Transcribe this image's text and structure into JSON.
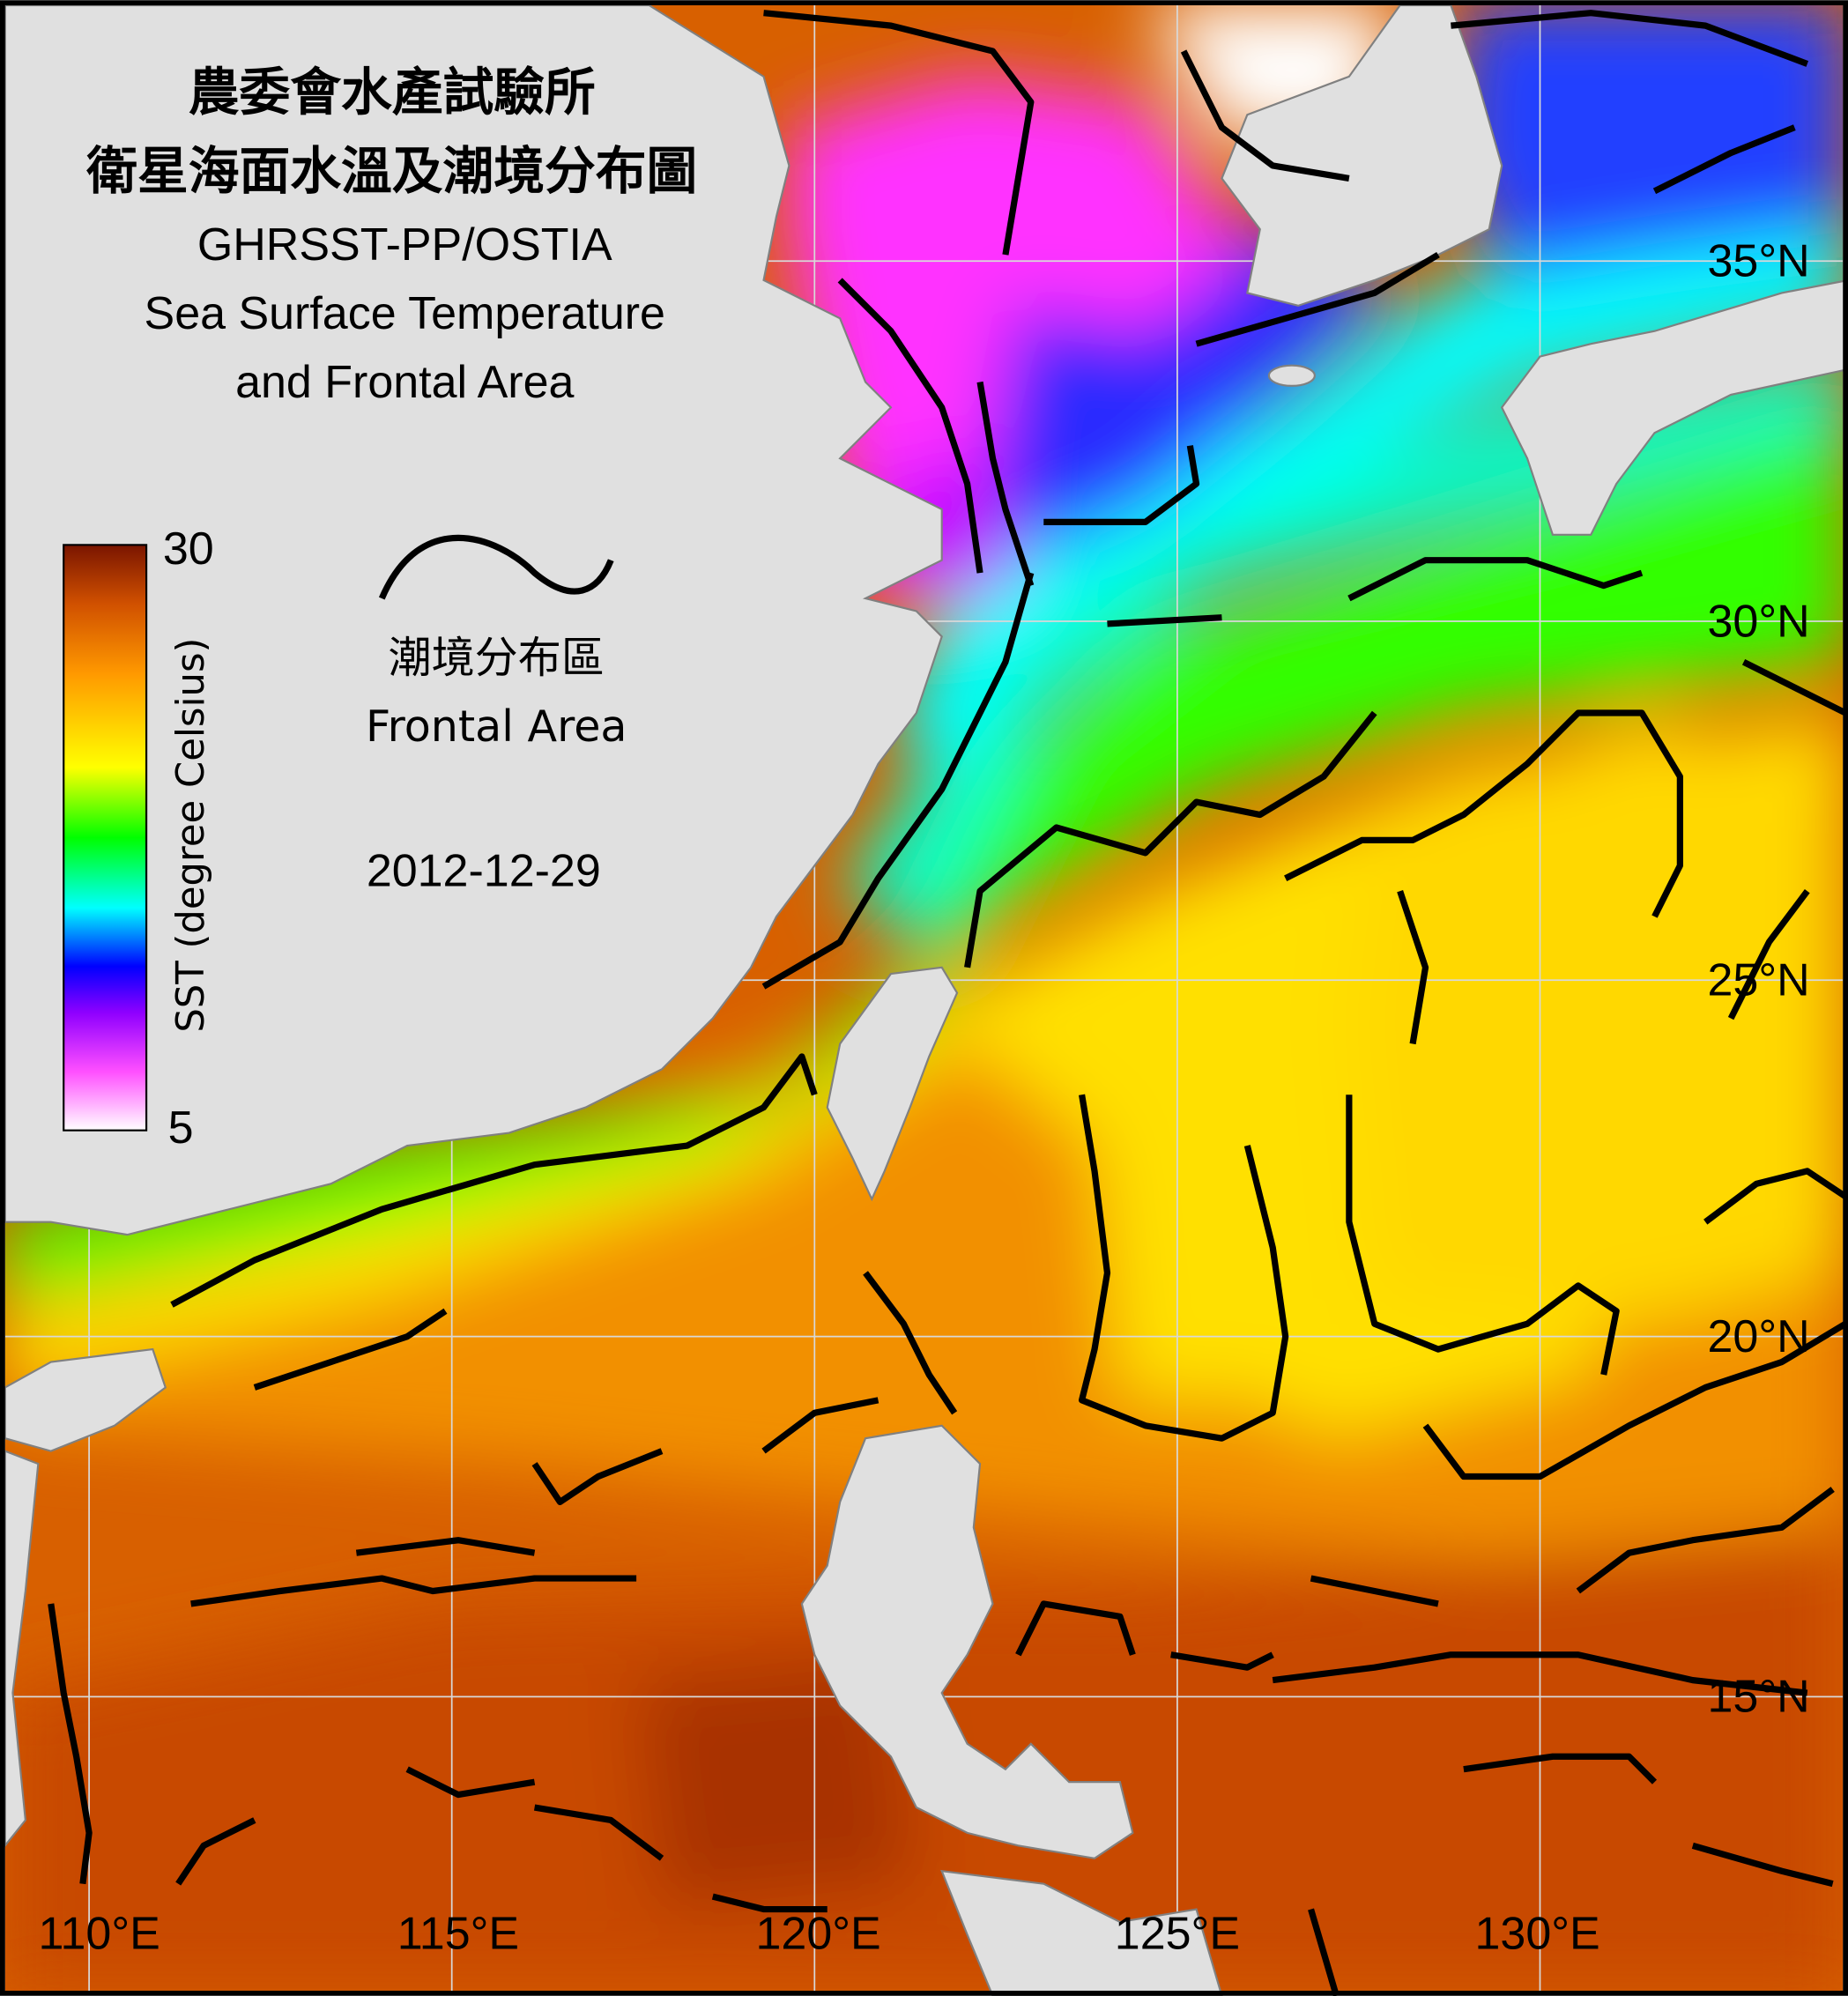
{
  "title": {
    "line1": "農委會水產試驗所",
    "line2": "衛星海面水溫及潮境分布圖",
    "line3": "GHRSST-PP/OSTIA",
    "line4": "Sea Surface Temperature",
    "line5": "and Frontal Area"
  },
  "legend": {
    "front_label_zh": "潮境分布區",
    "front_label_en": "Frontal Area",
    "front_icon": "black-wavy-line"
  },
  "date": "2012-12-29",
  "colorbar": {
    "label": "SST (degree Celsius)",
    "max_label": "30",
    "min_label": "5",
    "min": 5,
    "max": 30,
    "colors": [
      "#ffffff",
      "#ff40ff",
      "#8000ff",
      "#0000ff",
      "#00ffff",
      "#00ff00",
      "#ffff00",
      "#ff9900",
      "#d05000",
      "#7a1500"
    ]
  },
  "axes": {
    "lon_labels": [
      "110°E",
      "115°E",
      "120°E",
      "125°E",
      "130°E"
    ],
    "lat_labels": [
      "35°N",
      "30°N",
      "25°N",
      "20°N",
      "15°N"
    ]
  },
  "colors": {
    "land": "#e0e0e0",
    "front_line": "#000000",
    "grid": "#d0d0d0"
  }
}
